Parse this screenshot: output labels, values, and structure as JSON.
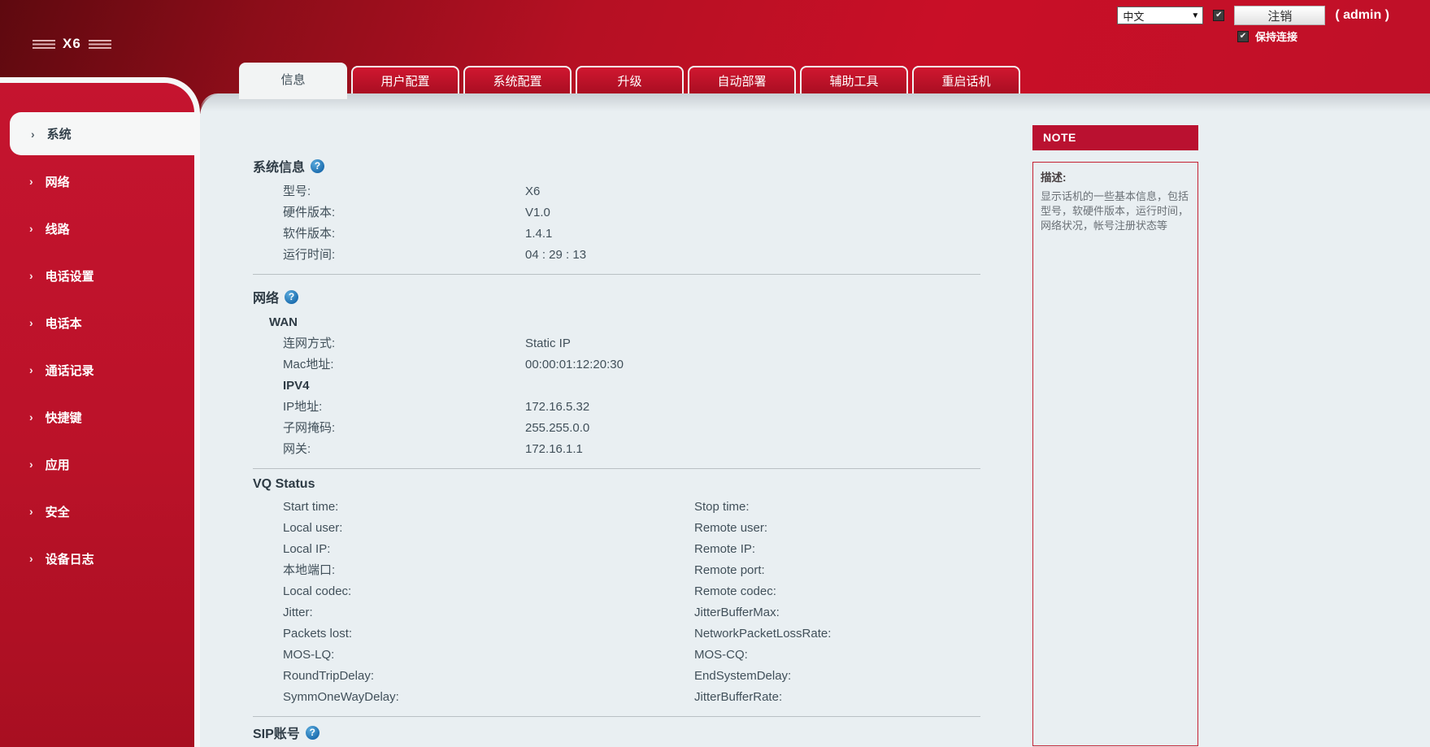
{
  "logo": {
    "text": "X6"
  },
  "header": {
    "language_select": {
      "value": "中文"
    },
    "language_apply_checked": true,
    "logout_button": "注销",
    "admin_label": "( admin )",
    "keep_alive": {
      "label": "保持连接",
      "checked": true
    }
  },
  "tabs": [
    {
      "label": "信息",
      "active": true
    },
    {
      "label": "用户配置",
      "active": false
    },
    {
      "label": "系统配置",
      "active": false
    },
    {
      "label": "升级",
      "active": false
    },
    {
      "label": "自动部署",
      "active": false
    },
    {
      "label": "辅助工具",
      "active": false
    },
    {
      "label": "重启话机",
      "active": false
    }
  ],
  "sidebar": {
    "items": [
      {
        "label": "系统",
        "active": true
      },
      {
        "label": "网络",
        "active": false
      },
      {
        "label": "线路",
        "active": false
      },
      {
        "label": "电话设置",
        "active": false
      },
      {
        "label": "电话本",
        "active": false
      },
      {
        "label": "通话记录",
        "active": false
      },
      {
        "label": "快捷键",
        "active": false
      },
      {
        "label": "应用",
        "active": false
      },
      {
        "label": "安全",
        "active": false
      },
      {
        "label": "设备日志",
        "active": false
      }
    ]
  },
  "main": {
    "system_info": {
      "title": "系统信息",
      "rows": [
        {
          "label": "型号:",
          "value": "X6"
        },
        {
          "label": "硬件版本:",
          "value": "V1.0"
        },
        {
          "label": "软件版本:",
          "value": "1.4.1"
        },
        {
          "label": "运行时间:",
          "value": "04 : 29 : 13"
        }
      ]
    },
    "network": {
      "title": "网络",
      "wan_label": "WAN",
      "wan_rows": [
        {
          "label": "连网方式:",
          "value": "Static IP"
        },
        {
          "label": "Mac地址:",
          "value": "00:00:01:12:20:30"
        }
      ],
      "ipv4_label": "IPV4",
      "ipv4_rows": [
        {
          "label": "IP地址:",
          "value": "172.16.5.32"
        },
        {
          "label": "子网掩码:",
          "value": "255.255.0.0"
        },
        {
          "label": "网关:",
          "value": "172.16.1.1"
        }
      ]
    },
    "vq_status": {
      "title": "VQ Status",
      "rows": [
        {
          "left": "Start time:",
          "right": "Stop time:"
        },
        {
          "left": "Local user:",
          "right": "Remote user:"
        },
        {
          "left": "Local IP:",
          "right": "Remote IP:"
        },
        {
          "left": "本地端口:",
          "right": "Remote port:"
        },
        {
          "left": "Local codec:",
          "right": "Remote codec:"
        },
        {
          "left": "Jitter:",
          "right": "JitterBufferMax:"
        },
        {
          "left": "Packets lost:",
          "right": "NetworkPacketLossRate:"
        },
        {
          "left": "MOS-LQ:",
          "right": "MOS-CQ:"
        },
        {
          "left": "RoundTripDelay:",
          "right": "EndSystemDelay:"
        },
        {
          "left": "SymmOneWayDelay:",
          "right": "JitterBufferRate:"
        }
      ]
    },
    "sip": {
      "title": "SIP账号"
    }
  },
  "note": {
    "title": "NOTE",
    "desc_label": "描述:",
    "desc_text": "显示话机的一些基本信息，包括型号，软硬件版本，运行时间，网络状况，帐号注册状态等"
  },
  "colors": {
    "accent_red": "#c0112a",
    "sidebar_red": "#c5142f",
    "note_header_red": "#ba1130",
    "content_bg": "#e9eff2",
    "help_icon_blue": "#1b6cae"
  }
}
